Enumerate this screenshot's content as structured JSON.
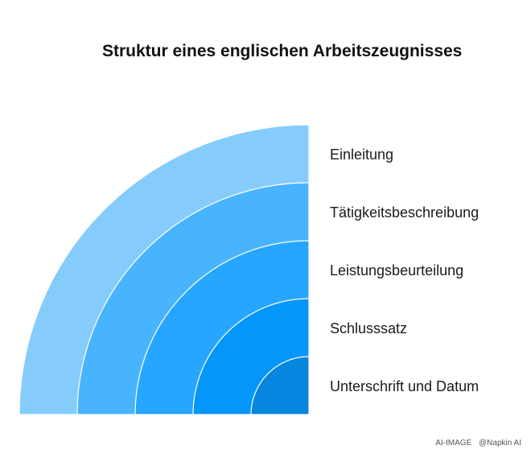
{
  "title": "Struktur eines englischen Arbeitszeugnisses",
  "layers": [
    {
      "label": "Einleitung",
      "color": "#85CCFD"
    },
    {
      "label": "Tätigkeitsbeschreibung",
      "color": "#48B4FE"
    },
    {
      "label": "Leistungsbeurteilung",
      "color": "#26A6FE"
    },
    {
      "label": "Schlusssatz",
      "color": "#0596FA"
    },
    {
      "label": "Unterschrift und Datum",
      "color": "#0686DE"
    }
  ],
  "footer": {
    "left": "AI-IMAGE",
    "right": "@Napkin AI"
  }
}
